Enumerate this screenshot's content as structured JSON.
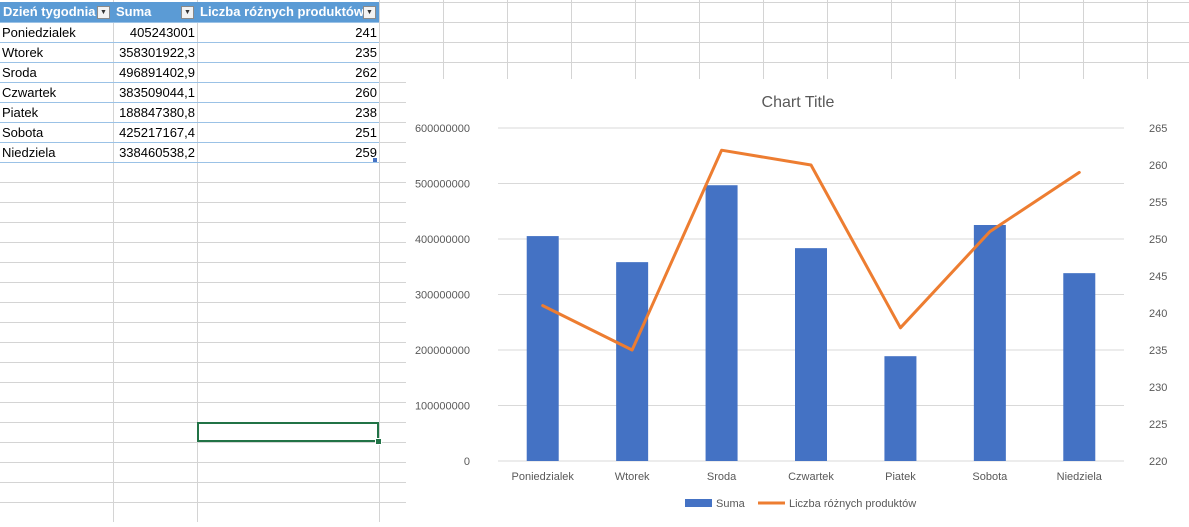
{
  "table": {
    "headers": [
      "Dzień tygodnia",
      "Suma",
      "Liczba różnych produktów"
    ],
    "rows": [
      {
        "day": "Poniedzialek",
        "suma": "405243001",
        "count": "241"
      },
      {
        "day": "Wtorek",
        "suma": "358301922,3",
        "count": "235"
      },
      {
        "day": "Sroda",
        "suma": "496891402,9",
        "count": "262"
      },
      {
        "day": "Czwartek",
        "suma": "383509044,1",
        "count": "260"
      },
      {
        "day": "Piatek",
        "suma": "188847380,8",
        "count": "238"
      },
      {
        "day": "Sobota",
        "suma": "425217167,4",
        "count": "251"
      },
      {
        "day": "Niedziela",
        "suma": "338460538,2",
        "count": "259"
      }
    ]
  },
  "chart_data": {
    "type": "bar",
    "title": "Chart Title",
    "categories": [
      "Poniedzialek",
      "Wtorek",
      "Sroda",
      "Czwartek",
      "Piatek",
      "Sobota",
      "Niedziela"
    ],
    "series": [
      {
        "name": "Suma",
        "type": "bar",
        "axis": "left",
        "color": "#4472c4",
        "values": [
          405243001,
          358301922.3,
          496891402.9,
          383509044.1,
          188847380.8,
          425217167.4,
          338460538.2
        ]
      },
      {
        "name": "Liczba różnych produktów",
        "type": "line",
        "axis": "right",
        "color": "#ed7d31",
        "values": [
          241,
          235,
          262,
          260,
          238,
          251,
          259
        ]
      }
    ],
    "y_left": {
      "min": 0,
      "max": 600000000,
      "step": 100000000,
      "tick_labels": [
        "0",
        "100000000",
        "200000000",
        "300000000",
        "400000000",
        "500000000",
        "600000000"
      ]
    },
    "y_right": {
      "min": 220,
      "max": 265,
      "step": 5,
      "tick_labels": [
        "220",
        "225",
        "230",
        "235",
        "240",
        "245",
        "250",
        "255",
        "260",
        "265"
      ]
    },
    "grid": true,
    "legend_position": "bottom"
  }
}
